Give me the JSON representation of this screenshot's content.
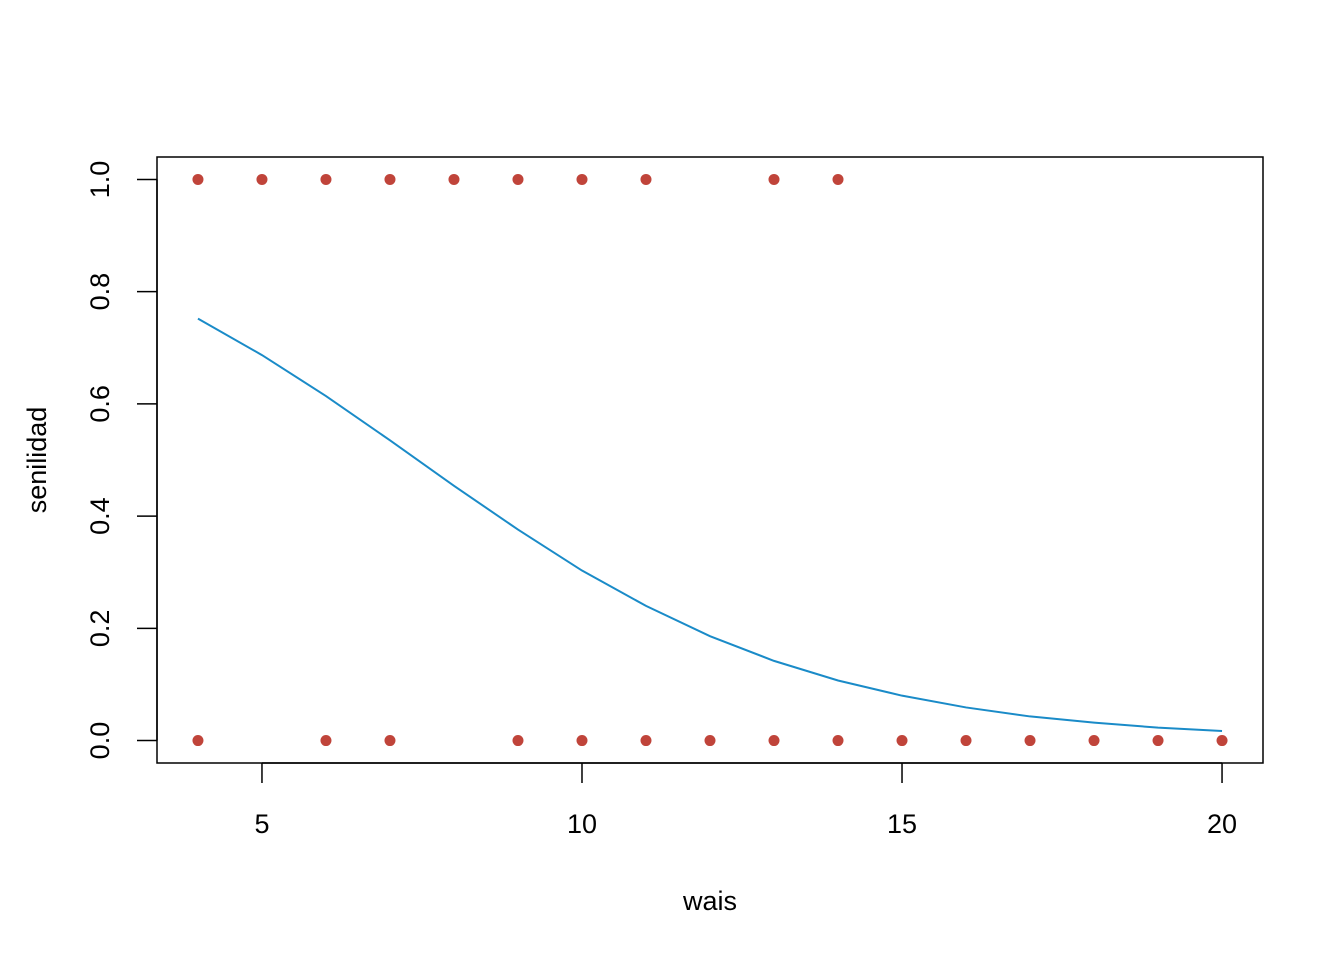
{
  "chart_data": {
    "type": "scatter",
    "x_label": "wais",
    "y_label": "senilidad",
    "xlim": [
      3.36,
      20.64
    ],
    "ylim": [
      -0.04,
      1.04
    ],
    "xticks": [
      5,
      10,
      15,
      20
    ],
    "yticks": [
      {
        "value": 0,
        "label": "0.0"
      },
      0.2,
      0.4,
      0.6,
      0.8,
      {
        "value": 1,
        "label": "1.0"
      }
    ],
    "series": [
      {
        "type": "scatter",
        "color": "#c0443a",
        "x": [
          4,
          5,
          6,
          7,
          8,
          9,
          10,
          11,
          13,
          14,
          4,
          6,
          7,
          9,
          10,
          11,
          12,
          13,
          14,
          15,
          16,
          17,
          18,
          19,
          20
        ],
        "values": [
          1,
          1,
          1,
          1,
          1,
          1,
          1,
          1,
          1,
          1,
          0,
          0,
          0,
          0,
          0,
          0,
          0,
          0,
          0,
          0,
          0,
          0,
          0,
          0,
          0
        ]
      },
      {
        "type": "line",
        "color": "#1a8bc8",
        "x": [
          4,
          5,
          6,
          7,
          8,
          9,
          10,
          11,
          12,
          13,
          14,
          15,
          16,
          17,
          18,
          19,
          20
        ],
        "values": [
          0.752,
          0.687,
          0.614,
          0.535,
          0.454,
          0.376,
          0.303,
          0.24,
          0.186,
          0.142,
          0.107,
          0.08,
          0.059,
          0.043,
          0.032,
          0.023,
          0.017
        ]
      }
    ]
  }
}
